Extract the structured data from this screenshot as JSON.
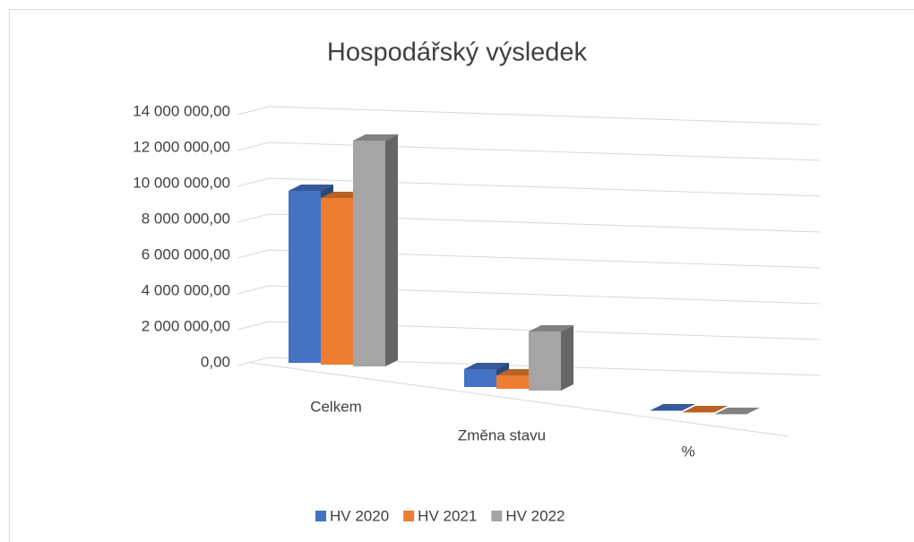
{
  "chart_data": {
    "type": "bar3d",
    "title": "Hospodářský výsledek",
    "categories": [
      "Celkem",
      "Změna stavu",
      "%"
    ],
    "series": [
      {
        "name": "HV 2020",
        "color": "#4472c4",
        "values": [
          9600000,
          1000000,
          0
        ]
      },
      {
        "name": "HV 2021",
        "color": "#ed7d31",
        "values": [
          9300000,
          750000,
          0
        ]
      },
      {
        "name": "HV 2022",
        "color": "#a5a5a5",
        "values": [
          12600000,
          3300000,
          0
        ]
      }
    ],
    "ylim": [
      0,
      14000000
    ],
    "yticks": [
      {
        "value": 0,
        "label": "0,00"
      },
      {
        "value": 2000000,
        "label": "2 000 000,00"
      },
      {
        "value": 4000000,
        "label": "4 000 000,00"
      },
      {
        "value": 6000000,
        "label": "6 000 000,00"
      },
      {
        "value": 8000000,
        "label": "8 000 000,00"
      },
      {
        "value": 10000000,
        "label": "10 000 000,00"
      },
      {
        "value": 12000000,
        "label": "12 000 000,00"
      },
      {
        "value": 14000000,
        "label": "14 000 000,00"
      }
    ],
    "grid": true,
    "legend": "bottom"
  }
}
